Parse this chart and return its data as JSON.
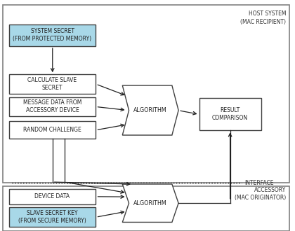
{
  "figsize": [
    4.2,
    3.3
  ],
  "dpi": 100,
  "bg_color": "#ffffff",
  "cyan_fill": "#a8d8e8",
  "white_fill": "#ffffff",
  "edge_color": "#404040",
  "border_color": "#808080",
  "text_color": "#202020",
  "host_label": "HOST SYSTEM\n(MAC RECIPIENT)",
  "accessory_label": "ACCESSORY\n(MAC ORIGINATOR)",
  "interface_label": "INTERFACE"
}
